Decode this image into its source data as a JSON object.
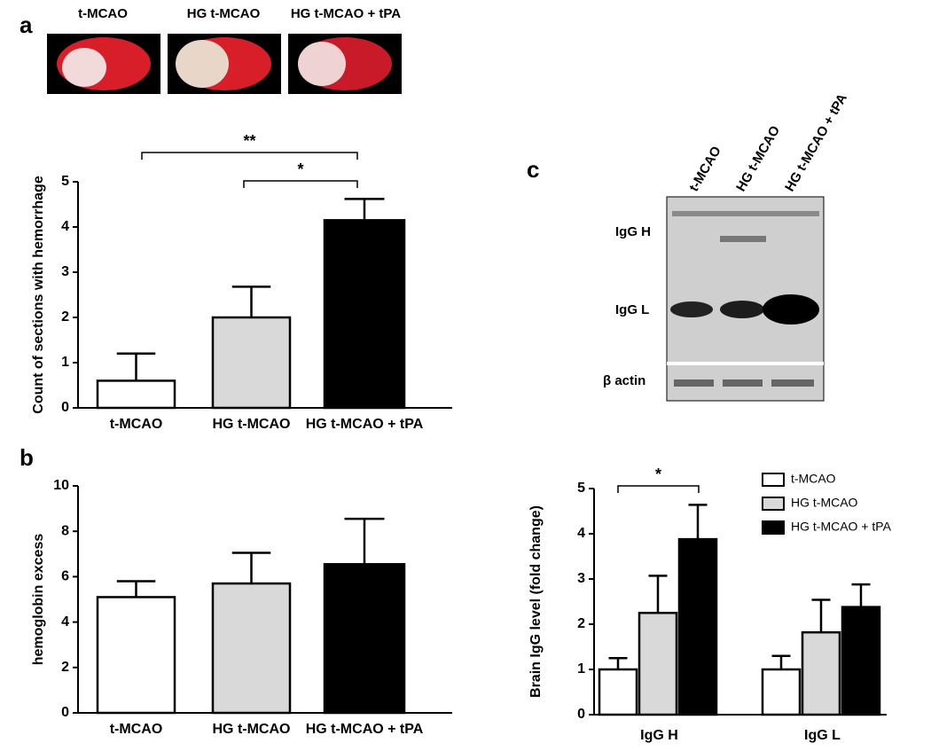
{
  "panel_labels": [
    "a",
    "b",
    "c"
  ],
  "brain_images": {
    "labels": [
      "t-MCAO",
      "HG t-MCAO",
      "HG t-MCAO + tPA"
    ]
  },
  "blot": {
    "lane_labels": [
      "t-MCAO",
      "HG t-MCAO",
      "HG t-MCAO + tPA"
    ],
    "band_labels": [
      "IgG H",
      "IgG L",
      "β actin"
    ]
  },
  "chart_data": [
    {
      "type": "bar",
      "ylabel": "Count of sections with hemorrhage",
      "categories": [
        "t-MCAO",
        "HG t-MCAO",
        "HG t-MCAO + tPA"
      ],
      "values": [
        0.6,
        2.0,
        4.15
      ],
      "errors": [
        0.6,
        0.68,
        0.47
      ],
      "colors": [
        "#ffffff",
        "#d9d9d9",
        "#000000"
      ],
      "ylim": [
        0,
        5
      ],
      "yticks": [
        0,
        1,
        2,
        3,
        4,
        5
      ],
      "annotations": [
        "**",
        "*"
      ]
    },
    {
      "type": "bar",
      "ylabel": "hemoglobin excess",
      "categories": [
        "t-MCAO",
        "HG t-MCAO",
        "HG t-MCAO + tPA"
      ],
      "values": [
        5.1,
        5.7,
        6.55
      ],
      "errors": [
        0.7,
        1.35,
        2.0
      ],
      "colors": [
        "#ffffff",
        "#d9d9d9",
        "#000000"
      ],
      "ylim": [
        0,
        10
      ],
      "yticks": [
        0,
        2,
        4,
        6,
        8,
        10
      ]
    },
    {
      "type": "grouped-bar",
      "ylabel": "Brain IgG level (fold change)",
      "categories": [
        "IgG H",
        "IgG L"
      ],
      "series": [
        {
          "name": "t-MCAO",
          "color": "#ffffff",
          "values": [
            1.0,
            1.0
          ],
          "errors": [
            0.25,
            0.3
          ]
        },
        {
          "name": "HG t-MCAO",
          "color": "#d9d9d9",
          "values": [
            2.25,
            1.82
          ],
          "errors": [
            0.82,
            0.72
          ]
        },
        {
          "name": "HG t-MCAO + tPA",
          "color": "#000000",
          "values": [
            3.88,
            2.38
          ],
          "errors": [
            0.76,
            0.5
          ]
        }
      ],
      "ylim": [
        0,
        5
      ],
      "yticks": [
        0,
        1,
        2,
        3,
        4,
        5
      ],
      "annotations": [
        "*"
      ],
      "legend": "top-right"
    }
  ]
}
